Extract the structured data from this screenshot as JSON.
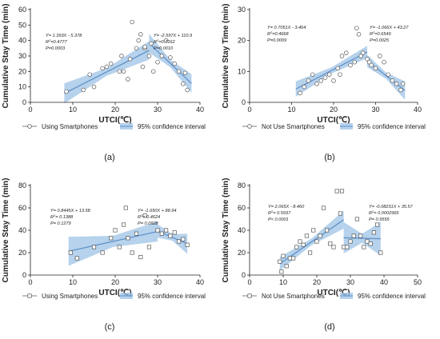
{
  "chart_data": [
    {
      "type": "scatter",
      "panel_label": "(a)",
      "ylabel": "Cumulative Stay Time (min)",
      "xlabel": "UTCI(℃)",
      "xlim": [
        0,
        40
      ],
      "ylim": [
        0,
        60
      ],
      "x_ticks": [
        "0",
        "10",
        "20",
        "30",
        "40"
      ],
      "y_ticks": [
        "0",
        "10",
        "20",
        "30",
        "40",
        "50",
        "60"
      ],
      "marker": "circle",
      "grid": false,
      "legend": {
        "placement": "bottom",
        "points": "Using Smartphones",
        "band": "95% confidence interval"
      },
      "breakpoint": 28,
      "fits": [
        {
          "x_range": [
            8,
            28
          ],
          "y_range": [
            5.8,
            33.6
          ],
          "band_halfwidth": [
            6.5,
            2.5,
            6
          ],
          "annotation": [
            "Y= 1.393X - 5.378",
            "R²=0.4777",
            "P=0.0003"
          ]
        },
        {
          "x_range": [
            28,
            38
          ],
          "y_range": [
            38.2,
            12.2
          ],
          "band_halfwidth": [
            6,
            2.5,
            6
          ],
          "annotation": [
            "Y= -2.597X + 110.9",
            "R²=0.7162",
            "P=0.0010"
          ]
        }
      ],
      "points": [
        [
          8.5,
          7
        ],
        [
          12.5,
          8
        ],
        [
          14,
          18
        ],
        [
          15,
          10
        ],
        [
          17,
          22
        ],
        [
          18,
          23
        ],
        [
          19,
          25
        ],
        [
          21,
          20
        ],
        [
          21.5,
          30
        ],
        [
          22,
          20
        ],
        [
          23,
          15
        ],
        [
          23.5,
          28
        ],
        [
          24,
          52
        ],
        [
          25,
          35
        ],
        [
          25.5,
          40
        ],
        [
          26,
          44
        ],
        [
          26.5,
          23
        ],
        [
          27,
          35
        ],
        [
          27,
          36
        ],
        [
          28,
          30
        ],
        [
          28.5,
          38
        ],
        [
          29,
          20
        ],
        [
          30,
          26
        ],
        [
          31,
          30
        ],
        [
          32,
          40
        ],
        [
          33,
          29
        ],
        [
          34,
          25
        ],
        [
          35,
          20
        ],
        [
          36,
          12
        ],
        [
          36.5,
          19
        ],
        [
          37,
          8
        ]
      ]
    },
    {
      "type": "scatter",
      "panel_label": "(b)",
      "ylabel": "Cumulative Stay Time (min)",
      "xlabel": "UTCI(℃)",
      "xlim": [
        0,
        40
      ],
      "ylim": [
        0,
        30
      ],
      "x_ticks": [
        "0",
        "10",
        "20",
        "30",
        "40"
      ],
      "y_ticks": [
        "0",
        "10",
        "20",
        "30"
      ],
      "marker": "circle",
      "grid": false,
      "legend": {
        "placement": "bottom",
        "points": "Not Use Smartphones",
        "band": "95% confidence interval"
      },
      "breakpoint": 28,
      "fits": [
        {
          "x_range": [
            11,
            28
          ],
          "y_range": [
            4.3,
            16.3
          ],
          "band_halfwidth": [
            2.5,
            1,
            2
          ],
          "annotation": [
            "Y= 0.7051X - 3.464",
            "R²=0.4668",
            "P=0.0009"
          ]
        },
        {
          "x_range": [
            28,
            37
          ],
          "y_range": [
            13.4,
            3.8
          ],
          "band_halfwidth": [
            2,
            1,
            3
          ],
          "annotation": [
            "Y= -1.066X + 43.27",
            "R²=0.6549",
            "P=0.0025"
          ]
        }
      ],
      "points": [
        [
          12,
          3
        ],
        [
          13,
          5
        ],
        [
          14,
          7
        ],
        [
          15,
          9
        ],
        [
          16,
          6
        ],
        [
          17,
          7
        ],
        [
          18,
          8
        ],
        [
          19,
          9
        ],
        [
          20,
          7
        ],
        [
          21,
          11
        ],
        [
          21.5,
          9
        ],
        [
          22,
          15
        ],
        [
          23,
          16
        ],
        [
          24,
          12
        ],
        [
          25,
          13
        ],
        [
          25.5,
          24
        ],
        [
          26,
          22
        ],
        [
          26.5,
          15
        ],
        [
          27,
          16
        ],
        [
          28,
          14
        ],
        [
          28.5,
          13
        ],
        [
          29,
          12
        ],
        [
          30,
          11
        ],
        [
          31,
          15
        ],
        [
          32,
          13
        ],
        [
          33,
          9
        ],
        [
          34,
          7
        ],
        [
          35,
          6
        ],
        [
          36,
          4
        ],
        [
          36.5,
          6
        ]
      ]
    },
    {
      "type": "scatter",
      "panel_label": "(c)",
      "ylabel": "Cumulative Stay Time (min)",
      "xlabel": "UTCI(℃)",
      "xlim": [
        0,
        40
      ],
      "ylim": [
        0,
        80
      ],
      "x_ticks": [
        "0",
        "10",
        "20",
        "30",
        "40"
      ],
      "y_ticks": [
        "0",
        "20",
        "40",
        "60",
        "80"
      ],
      "marker": "square",
      "grid": false,
      "legend": {
        "placement": "bottom",
        "points": "Using Smartphones",
        "band": "95% confidence interval"
      },
      "breakpoint": 30,
      "fits": [
        {
          "x_range": [
            9,
            30
          ],
          "y_range": [
            21.2,
            38.9
          ],
          "band_halfwidth": [
            13,
            5,
            9
          ],
          "annotation": [
            "Y= 0.8445X + 13.58",
            "R²= 0.1388",
            "P= 0.1279"
          ]
        },
        {
          "x_range": [
            30,
            37
          ],
          "y_range": [
            39.4,
            27.9
          ],
          "band_halfwidth": [
            6,
            3,
            9
          ],
          "annotation": [
            "Y= -1.650X + 88.94",
            "R²= 0.4624",
            "P= 0.0928"
          ]
        }
      ],
      "points": [
        [
          9.5,
          20
        ],
        [
          11,
          15
        ],
        [
          15,
          25
        ],
        [
          17,
          20
        ],
        [
          19,
          33
        ],
        [
          20,
          40
        ],
        [
          21,
          25
        ],
        [
          22,
          45
        ],
        [
          22.5,
          60
        ],
        [
          23,
          33
        ],
        [
          24,
          20
        ],
        [
          25,
          37
        ],
        [
          26,
          16
        ],
        [
          27,
          53
        ],
        [
          28,
          25
        ],
        [
          30,
          40
        ],
        [
          31,
          37
        ],
        [
          32,
          40
        ],
        [
          33,
          35
        ],
        [
          34,
          38
        ],
        [
          35,
          30
        ],
        [
          36,
          32
        ],
        [
          37,
          27
        ]
      ]
    },
    {
      "type": "scatter",
      "panel_label": "(d)",
      "ylabel": "Cumulative Stay Time (min)",
      "xlabel": "UTCI(℃)",
      "xlim": [
        0,
        50
      ],
      "ylim": [
        0,
        80
      ],
      "x_ticks": [
        "0",
        "10",
        "20",
        "30",
        "40",
        "50"
      ],
      "y_ticks": [
        "0",
        "20",
        "40",
        "60",
        "80"
      ],
      "marker": "square",
      "grid": false,
      "legend": {
        "placement": "bottom",
        "points": "Not Use Smartphones",
        "band": "95% confidence interval"
      },
      "breakpoint": 28,
      "fits": [
        {
          "x_range": [
            9,
            28
          ],
          "y_range": [
            10.1,
            49.4
          ],
          "band_halfwidth": [
            6,
            3,
            8
          ],
          "annotation": [
            "Y= 2.065X - 8.460",
            "R²= 0.5597",
            "P< 0.0001"
          ]
        },
        {
          "x_range": [
            28,
            39
          ],
          "y_range": [
            33.3,
            32.4
          ],
          "band_halfwidth": [
            14,
            4,
            15
          ],
          "annotation": [
            "Y= -0.08231X + 35.57",
            "R²= 0.0002965",
            "P= 0.9555"
          ]
        }
      ],
      "points": [
        [
          9,
          12
        ],
        [
          9.5,
          3
        ],
        [
          10,
          17
        ],
        [
          11,
          8
        ],
        [
          12,
          15
        ],
        [
          13,
          15
        ],
        [
          14,
          25
        ],
        [
          15,
          30
        ],
        [
          16,
          27
        ],
        [
          17,
          35
        ],
        [
          18,
          20
        ],
        [
          19,
          40
        ],
        [
          20,
          30
        ],
        [
          21,
          35
        ],
        [
          22,
          60
        ],
        [
          23,
          40
        ],
        [
          24,
          28
        ],
        [
          25,
          25
        ],
        [
          26,
          75
        ],
        [
          27,
          55
        ],
        [
          27.5,
          75
        ],
        [
          28,
          25
        ],
        [
          29,
          25
        ],
        [
          30,
          30
        ],
        [
          31,
          35
        ],
        [
          32,
          50
        ],
        [
          33,
          35
        ],
        [
          34,
          25
        ],
        [
          35,
          30
        ],
        [
          36,
          28
        ],
        [
          37,
          38
        ],
        [
          38,
          45
        ],
        [
          39,
          20
        ]
      ]
    }
  ]
}
